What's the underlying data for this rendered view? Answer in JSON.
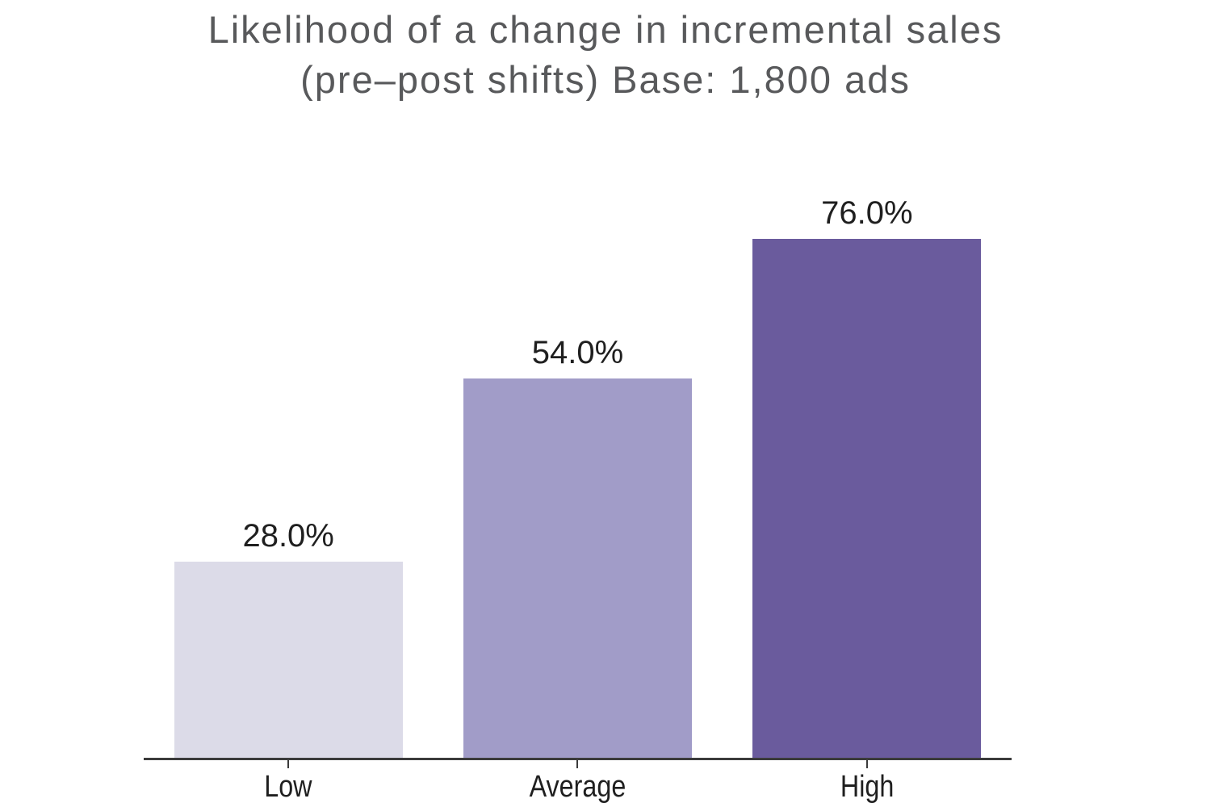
{
  "title": {
    "line1": "Likelihood of a change in incremental sales",
    "line2": "(pre–post shifts) Base: 1,800 ads"
  },
  "chart_data": {
    "type": "bar",
    "title": "Likelihood of a change in incremental sales (pre–post shifts) Base: 1,800 ads",
    "title_lines": [
      "Likelihood of a change in incremental sales",
      "(pre–post shifts) Base: 1,800 ads"
    ],
    "categories": [
      "Low",
      "Average",
      "High"
    ],
    "values": [
      28.0,
      54.0,
      76.0
    ],
    "value_labels": [
      "28.0%",
      "54.0%",
      "76.0%"
    ],
    "xlabel": "",
    "ylabel": "",
    "ylim": [
      0,
      80
    ],
    "grid": false,
    "legend": null,
    "bar_colors": [
      "#dcdbe8",
      "#a19cc8",
      "#6a5b9d"
    ],
    "axis_color": "#3b3b3b",
    "label_color": "#1f1f1f",
    "title_color": "#58595b",
    "background_color": "#ffffff"
  }
}
